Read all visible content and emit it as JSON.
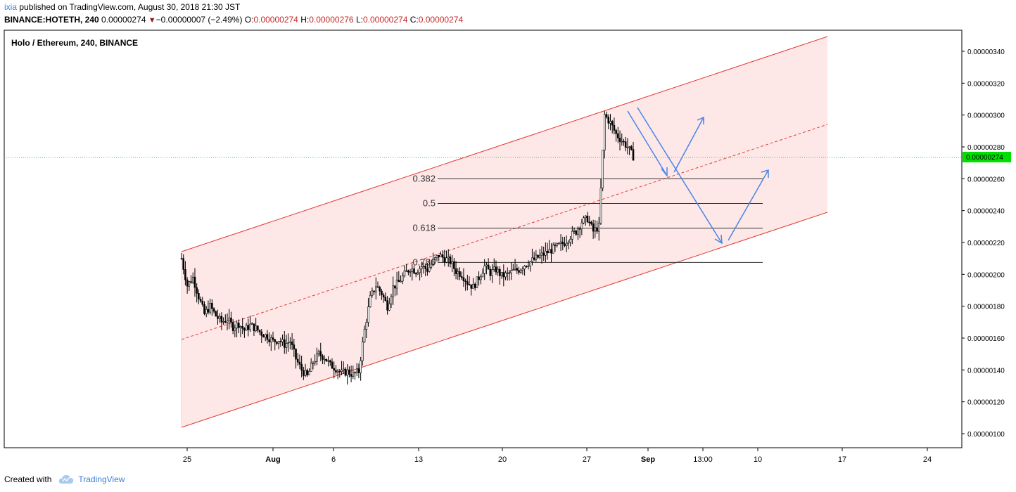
{
  "header": {
    "user": "ixia",
    "published_text": "published on TradingView.com, August 30, 2018 21:30 JST",
    "symbol_interval": "BINANCE:HOTETH, 240",
    "last_price": "0.00000274",
    "change": "−0.00000007 (−2.49%)",
    "o_label": "O:",
    "o_value": "0.00000274",
    "h_label": "H:",
    "h_value": "0.00000276",
    "l_label": "L:",
    "l_value": "0.00000274",
    "c_label": "C:",
    "c_value": "0.00000274"
  },
  "chart_data": {
    "type": "candlestick",
    "title": "Holo / Ethereum, 240, BINANCE",
    "ylim": [
      9e-07,
      3.49e-06
    ],
    "y_ticks": [
      "0.00000100",
      "0.00000120",
      "0.00000140",
      "0.00000160",
      "0.00000180",
      "0.00000200",
      "0.00000220",
      "0.00000240",
      "0.00000260",
      "0.00000280",
      "0.00000300",
      "0.00000320",
      "0.00000340"
    ],
    "x_ticks": [
      "25",
      "Aug",
      "6",
      "13",
      "20",
      "27",
      "Sep",
      "13:00",
      "10",
      "17",
      "24"
    ],
    "last_price_label": "0.00000274",
    "fib_levels": [
      {
        "label": "0.382",
        "value": 2.6e-06
      },
      {
        "label": "0.5",
        "value": 2.445e-06
      },
      {
        "label": "0.618",
        "value": 2.29e-06
      },
      {
        "label": "0.786",
        "value": 2.075e-06
      }
    ],
    "price_path": [
      [
        0,
        2.1
      ],
      [
        1,
        1.93
      ],
      [
        2,
        1.98
      ],
      [
        3,
        1.86
      ],
      [
        4,
        1.75
      ],
      [
        5,
        1.8
      ],
      [
        6,
        1.74
      ],
      [
        7,
        1.7
      ],
      [
        8,
        1.72
      ],
      [
        9,
        1.67
      ],
      [
        10,
        1.69
      ],
      [
        11,
        1.65
      ],
      [
        12,
        1.68
      ],
      [
        13,
        1.66
      ],
      [
        14,
        1.63
      ],
      [
        15,
        1.61
      ],
      [
        16,
        1.58
      ],
      [
        17,
        1.59
      ],
      [
        18,
        1.56
      ],
      [
        19,
        1.58
      ],
      [
        20,
        1.47
      ],
      [
        21,
        1.4
      ],
      [
        22,
        1.36
      ],
      [
        23,
        1.45
      ],
      [
        24,
        1.5
      ],
      [
        25,
        1.48
      ],
      [
        26,
        1.43
      ],
      [
        27,
        1.41
      ],
      [
        28,
        1.38
      ],
      [
        29,
        1.39
      ],
      [
        30,
        1.37
      ],
      [
        31,
        1.39
      ],
      [
        32,
        1.65
      ],
      [
        33,
        1.85
      ],
      [
        34,
        1.93
      ],
      [
        35,
        1.88
      ],
      [
        36,
        1.8
      ],
      [
        37,
        1.92
      ],
      [
        38,
        1.95
      ],
      [
        39,
        2.0
      ],
      [
        40,
        2.04
      ],
      [
        41,
        2.02
      ],
      [
        42,
        2.05
      ],
      [
        43,
        2.03
      ],
      [
        44,
        2.08
      ],
      [
        45,
        2.12
      ],
      [
        46,
        2.1
      ],
      [
        47,
        2.08
      ],
      [
        48,
        2.02
      ],
      [
        49,
        2.0
      ],
      [
        50,
        1.95
      ],
      [
        51,
        1.92
      ],
      [
        52,
        1.98
      ],
      [
        53,
        2.05
      ],
      [
        54,
        2.01
      ],
      [
        55,
        2.03
      ],
      [
        56,
        1.99
      ],
      [
        57,
        2.0
      ],
      [
        58,
        2.02
      ],
      [
        59,
        2.03
      ],
      [
        60,
        2.06
      ],
      [
        61,
        2.08
      ],
      [
        62,
        2.1
      ],
      [
        63,
        2.12
      ],
      [
        64,
        2.14
      ],
      [
        65,
        2.16
      ],
      [
        66,
        2.18
      ],
      [
        67,
        2.2
      ],
      [
        68,
        2.24
      ],
      [
        69,
        2.27
      ],
      [
        70,
        2.33
      ],
      [
        71,
        2.35
      ],
      [
        72,
        2.27
      ],
      [
        73,
        2.3
      ],
      [
        74,
        3.0
      ],
      [
        75,
        2.95
      ],
      [
        76,
        2.88
      ],
      [
        77,
        2.84
      ],
      [
        78,
        2.8
      ],
      [
        79,
        2.74
      ]
    ]
  },
  "footer": {
    "created_with": "Created with",
    "brand": "TradingView"
  }
}
